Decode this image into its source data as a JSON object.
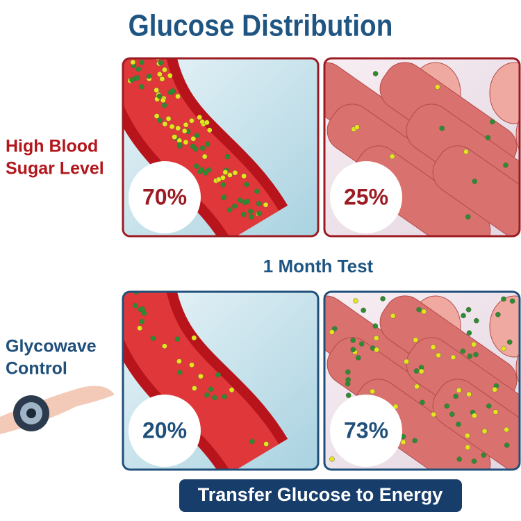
{
  "header": {
    "title": "Glucose Distribution"
  },
  "rows": [
    {
      "label": [
        "High Blood",
        "Sugar Level"
      ],
      "panels": [
        {
          "percent": "70%"
        },
        {
          "percent": "25%"
        }
      ]
    },
    {
      "label": [
        "Glycowave",
        "Control"
      ],
      "panels": [
        {
          "percent": "20%"
        },
        {
          "percent": "73%"
        }
      ]
    }
  ],
  "divider": "1 Month Test",
  "footer": "Transfer Glucose to Energy"
}
